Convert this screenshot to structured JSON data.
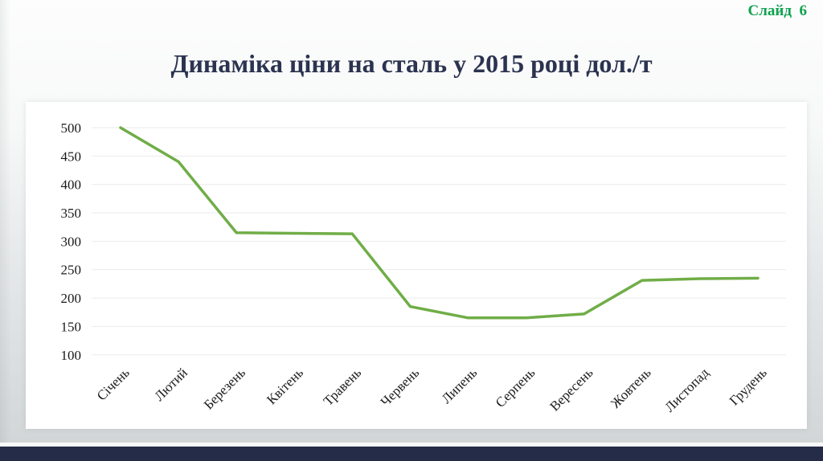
{
  "page": {
    "slide_label": "Слайд  6",
    "title": "Динаміка ціни на сталь у 2015 році дол./т"
  },
  "colors": {
    "line": "#70ad47",
    "grid": "#ebebeb",
    "axis_text": "#1a1a1a",
    "title": "#2b3350",
    "slide_number": "#0fa24f",
    "footer_bar": "#252c47",
    "panel_background": "#ffffff"
  },
  "chart_data": {
    "type": "line",
    "title": "Динаміка ціни на сталь у 2015 році дол./т",
    "categories": [
      "Січень",
      "Лютий",
      "Березень",
      "Квітень",
      "Травень",
      "Червень",
      "Липень",
      "Серпень",
      "Вересень",
      "Жовтень",
      "Листопад",
      "Грудень"
    ],
    "values": [
      500,
      440,
      315,
      314,
      313,
      185,
      165,
      165,
      172,
      231,
      234,
      235
    ],
    "xlabel": "",
    "ylabel": "",
    "ylim": [
      100,
      500
    ],
    "yticks": [
      100,
      150,
      200,
      250,
      300,
      350,
      400,
      450,
      500
    ],
    "grid": true,
    "legend": "none",
    "markers": false
  }
}
